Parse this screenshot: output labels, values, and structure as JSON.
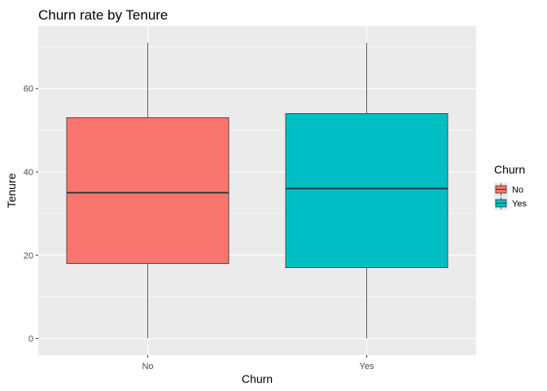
{
  "chart_data": {
    "type": "boxplot",
    "title": "Churn rate by Tenure",
    "xlabel": "Churn",
    "ylabel": "Tenure",
    "ylim": [
      -4,
      75
    ],
    "yticks": [
      0,
      20,
      40,
      60
    ],
    "categories": [
      "No",
      "Yes"
    ],
    "boxes": [
      {
        "category": "No",
        "min": 0,
        "q1": 18,
        "median": 35,
        "q3": 53,
        "max": 71,
        "color": "#F8766D"
      },
      {
        "category": "Yes",
        "min": 0,
        "q1": 17,
        "median": 36,
        "q3": 54,
        "max": 71,
        "color": "#00BFC4"
      }
    ],
    "legend": {
      "title": "Churn",
      "position": "right",
      "entries": [
        {
          "label": "No",
          "color": "#F8766D"
        },
        {
          "label": "Yes",
          "color": "#00BFC4"
        }
      ]
    },
    "grid": true,
    "panel_background": "#EBEBEB"
  }
}
